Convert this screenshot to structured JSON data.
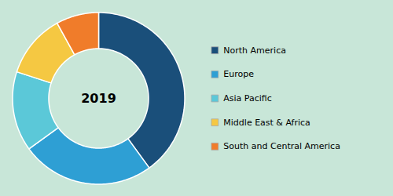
{
  "chart_data": {
    "type": "pie",
    "categories": [
      "North America",
      "Europe",
      "Asia Pacific",
      "Middle East & Africa",
      "South and Central America"
    ],
    "values": [
      40,
      25,
      15,
      12,
      8
    ],
    "colors": [
      "#1a4f7a",
      "#2e9fd4",
      "#5bc8d8",
      "#f5c842",
      "#f07c2a"
    ],
    "annotations": [
      "2019"
    ],
    "legend": "right"
  }
}
